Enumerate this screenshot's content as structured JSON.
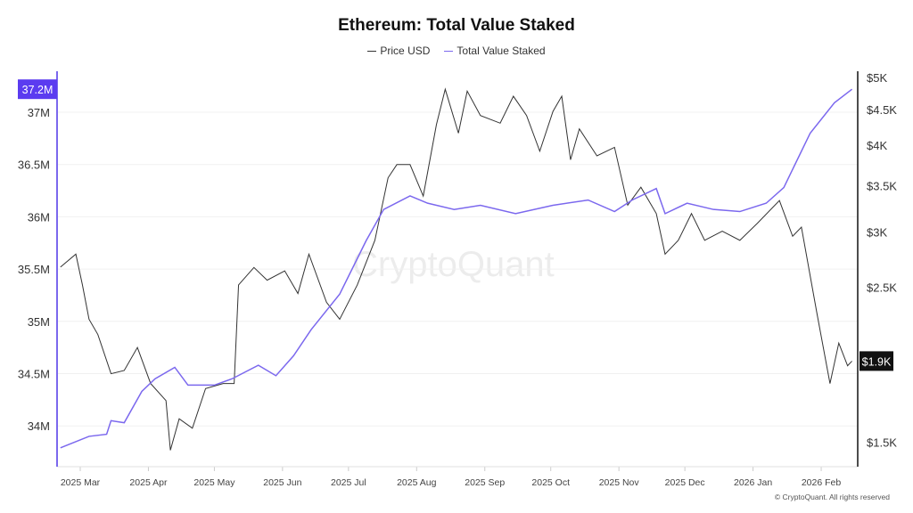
{
  "chart_data": {
    "type": "line",
    "title": "Ethereum: Total Value Staked",
    "legend_placement": "top-center",
    "x_tick_labels": [
      "2025 Mar",
      "2025 Apr",
      "2025 May",
      "2025 Jun",
      "2025 Jul",
      "2025 Aug",
      "2025 Sep",
      "2025 Oct",
      "2025 Nov",
      "2025 Dec",
      "2026 Jan",
      "2026 Feb"
    ],
    "x_ticks": [
      "2025-03-01",
      "2025-04-01",
      "2025-05-01",
      "2025-06-01",
      "2025-07-01",
      "2025-08-01",
      "2025-09-01",
      "2025-10-01",
      "2025-11-01",
      "2025-12-01",
      "2026-01-01",
      "2026-02-01"
    ],
    "y_left": {
      "ticks": [
        34,
        34.5,
        35,
        35.5,
        36,
        36.5,
        37
      ],
      "tick_labels": [
        "34M",
        "34.5M",
        "35M",
        "35.5M",
        "36M",
        "36.5M",
        "37M"
      ],
      "range": [
        33.7,
        37.35
      ],
      "current_label": "37.2M",
      "color": "#7b68ee",
      "scale": "linear"
    },
    "y_right": {
      "ticks": [
        1500,
        2500,
        3000,
        3500,
        4000,
        4500,
        5000
      ],
      "tick_labels": [
        "$1.5K",
        "$2.5K",
        "$3K",
        "$3.5K",
        "$4K",
        "$4.5K",
        "$5K"
      ],
      "scale": "log",
      "current_label": "$1.9K",
      "color": "#111111"
    },
    "grid": true,
    "series": [
      {
        "name": "Price USD",
        "axis": "right",
        "color": "#333333",
        "points": [
          [
            "2025-02-20",
            2673
          ],
          [
            "2025-02-27",
            2790
          ],
          [
            "2025-03-02",
            2520
          ],
          [
            "2025-03-05",
            2250
          ],
          [
            "2025-03-09",
            2140
          ],
          [
            "2025-03-15",
            1880
          ],
          [
            "2025-03-21",
            1900
          ],
          [
            "2025-03-27",
            2050
          ],
          [
            "2025-04-02",
            1820
          ],
          [
            "2025-04-09",
            1720
          ],
          [
            "2025-04-11",
            1460
          ],
          [
            "2025-04-15",
            1620
          ],
          [
            "2025-04-21",
            1570
          ],
          [
            "2025-04-27",
            1790
          ],
          [
            "2025-05-05",
            1820
          ],
          [
            "2025-05-10",
            1820
          ],
          [
            "2025-05-12",
            2520
          ],
          [
            "2025-05-19",
            2670
          ],
          [
            "2025-05-25",
            2560
          ],
          [
            "2025-06-02",
            2640
          ],
          [
            "2025-06-08",
            2450
          ],
          [
            "2025-06-13",
            2790
          ],
          [
            "2025-06-21",
            2380
          ],
          [
            "2025-06-27",
            2250
          ],
          [
            "2025-07-05",
            2520
          ],
          [
            "2025-07-13",
            2920
          ],
          [
            "2025-07-19",
            3590
          ],
          [
            "2025-07-23",
            3750
          ],
          [
            "2025-07-29",
            3750
          ],
          [
            "2025-08-04",
            3380
          ],
          [
            "2025-08-10",
            4280
          ],
          [
            "2025-08-14",
            4810
          ],
          [
            "2025-08-20",
            4160
          ],
          [
            "2025-08-24",
            4780
          ],
          [
            "2025-08-30",
            4410
          ],
          [
            "2025-09-08",
            4300
          ],
          [
            "2025-09-14",
            4700
          ],
          [
            "2025-09-20",
            4410
          ],
          [
            "2025-09-26",
            3920
          ],
          [
            "2025-10-02",
            4470
          ],
          [
            "2025-10-06",
            4700
          ],
          [
            "2025-10-10",
            3810
          ],
          [
            "2025-10-14",
            4220
          ],
          [
            "2025-10-22",
            3860
          ],
          [
            "2025-10-30",
            3970
          ],
          [
            "2025-11-05",
            3280
          ],
          [
            "2025-11-11",
            3480
          ],
          [
            "2025-11-18",
            3190
          ],
          [
            "2025-11-22",
            2790
          ],
          [
            "2025-11-28",
            2920
          ],
          [
            "2025-12-04",
            3190
          ],
          [
            "2025-12-10",
            2920
          ],
          [
            "2025-12-18",
            3010
          ],
          [
            "2025-12-26",
            2920
          ],
          [
            "2026-01-03",
            3090
          ],
          [
            "2026-01-13",
            3330
          ],
          [
            "2026-01-19",
            2960
          ],
          [
            "2026-01-23",
            3050
          ],
          [
            "2026-01-30",
            2300
          ],
          [
            "2026-02-05",
            1820
          ],
          [
            "2026-02-09",
            2080
          ],
          [
            "2026-02-13",
            1930
          ],
          [
            "2026-02-15",
            1960
          ]
        ]
      },
      {
        "name": "Total Value Staked",
        "axis": "left",
        "color": "#7b68ee",
        "points": [
          [
            "2025-02-20",
            33.79
          ],
          [
            "2025-03-05",
            33.9
          ],
          [
            "2025-03-13",
            33.92
          ],
          [
            "2025-03-15",
            34.05
          ],
          [
            "2025-03-21",
            34.03
          ],
          [
            "2025-03-29",
            34.33
          ],
          [
            "2025-04-04",
            34.45
          ],
          [
            "2025-04-13",
            34.56
          ],
          [
            "2025-04-19",
            34.39
          ],
          [
            "2025-05-01",
            34.39
          ],
          [
            "2025-05-09",
            34.45
          ],
          [
            "2025-05-21",
            34.58
          ],
          [
            "2025-05-29",
            34.48
          ],
          [
            "2025-06-06",
            34.67
          ],
          [
            "2025-06-14",
            34.92
          ],
          [
            "2025-06-27",
            35.26
          ],
          [
            "2025-07-09",
            35.77
          ],
          [
            "2025-07-17",
            36.07
          ],
          [
            "2025-07-29",
            36.2
          ],
          [
            "2025-08-06",
            36.13
          ],
          [
            "2025-08-18",
            36.07
          ],
          [
            "2025-08-30",
            36.11
          ],
          [
            "2025-09-15",
            36.03
          ],
          [
            "2025-10-02",
            36.11
          ],
          [
            "2025-10-18",
            36.16
          ],
          [
            "2025-10-30",
            36.05
          ],
          [
            "2025-11-07",
            36.16
          ],
          [
            "2025-11-18",
            36.27
          ],
          [
            "2025-11-22",
            36.03
          ],
          [
            "2025-12-02",
            36.13
          ],
          [
            "2025-12-14",
            36.07
          ],
          [
            "2025-12-26",
            36.05
          ],
          [
            "2026-01-07",
            36.13
          ],
          [
            "2026-01-15",
            36.28
          ],
          [
            "2026-01-27",
            36.8
          ],
          [
            "2026-02-07",
            37.09
          ],
          [
            "2026-02-15",
            37.22
          ]
        ]
      }
    ]
  },
  "watermark": "CryptoQuant",
  "footer": "© CryptoQuant. All rights reserved"
}
